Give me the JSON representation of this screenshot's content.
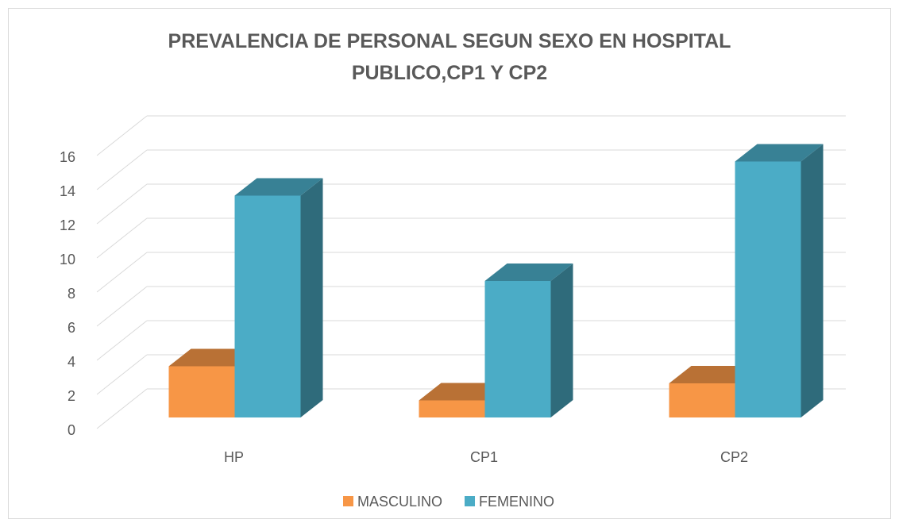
{
  "chart_data": {
    "type": "bar3d",
    "title": "PREVALENCIA DE PERSONAL SEGUN SEXO EN HOSPITAL PUBLICO,CP1 Y CP2",
    "categories": [
      "HP",
      "CP1",
      "CP2"
    ],
    "series": [
      {
        "name": "MASCULINO",
        "color": "#f79646",
        "values": [
          3,
          1,
          2
        ]
      },
      {
        "name": "FEMENINO",
        "color": "#4bacc6",
        "values": [
          13,
          8,
          15
        ]
      }
    ],
    "ylim": [
      0,
      16
    ],
    "yticks": [
      0,
      2,
      4,
      6,
      8,
      10,
      12,
      14,
      16
    ],
    "grid": true,
    "legend": "bottom"
  }
}
